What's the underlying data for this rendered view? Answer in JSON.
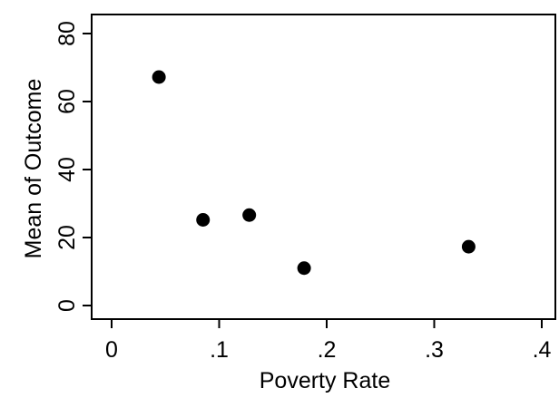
{
  "chart_data": {
    "type": "scatter",
    "xlabel": "Poverty Rate",
    "ylabel": "Mean of Outcome",
    "xlim": [
      0,
      0.4
    ],
    "ylim": [
      0,
      80
    ],
    "xticks": [
      0,
      0.1,
      0.2,
      0.3,
      0.4
    ],
    "xtick_labels": [
      "0",
      ".1",
      ".2",
      ".3",
      ".4"
    ],
    "yticks": [
      0,
      20,
      40,
      60,
      80
    ],
    "ytick_labels": [
      "0",
      "20",
      "40",
      "60",
      "80"
    ],
    "grid": false,
    "points": [
      {
        "x": 0.044,
        "y": 67.2
      },
      {
        "x": 0.085,
        "y": 25.2
      },
      {
        "x": 0.128,
        "y": 26.6
      },
      {
        "x": 0.179,
        "y": 11.0
      },
      {
        "x": 0.332,
        "y": 17.3
      }
    ],
    "marker_color": "#000000"
  }
}
